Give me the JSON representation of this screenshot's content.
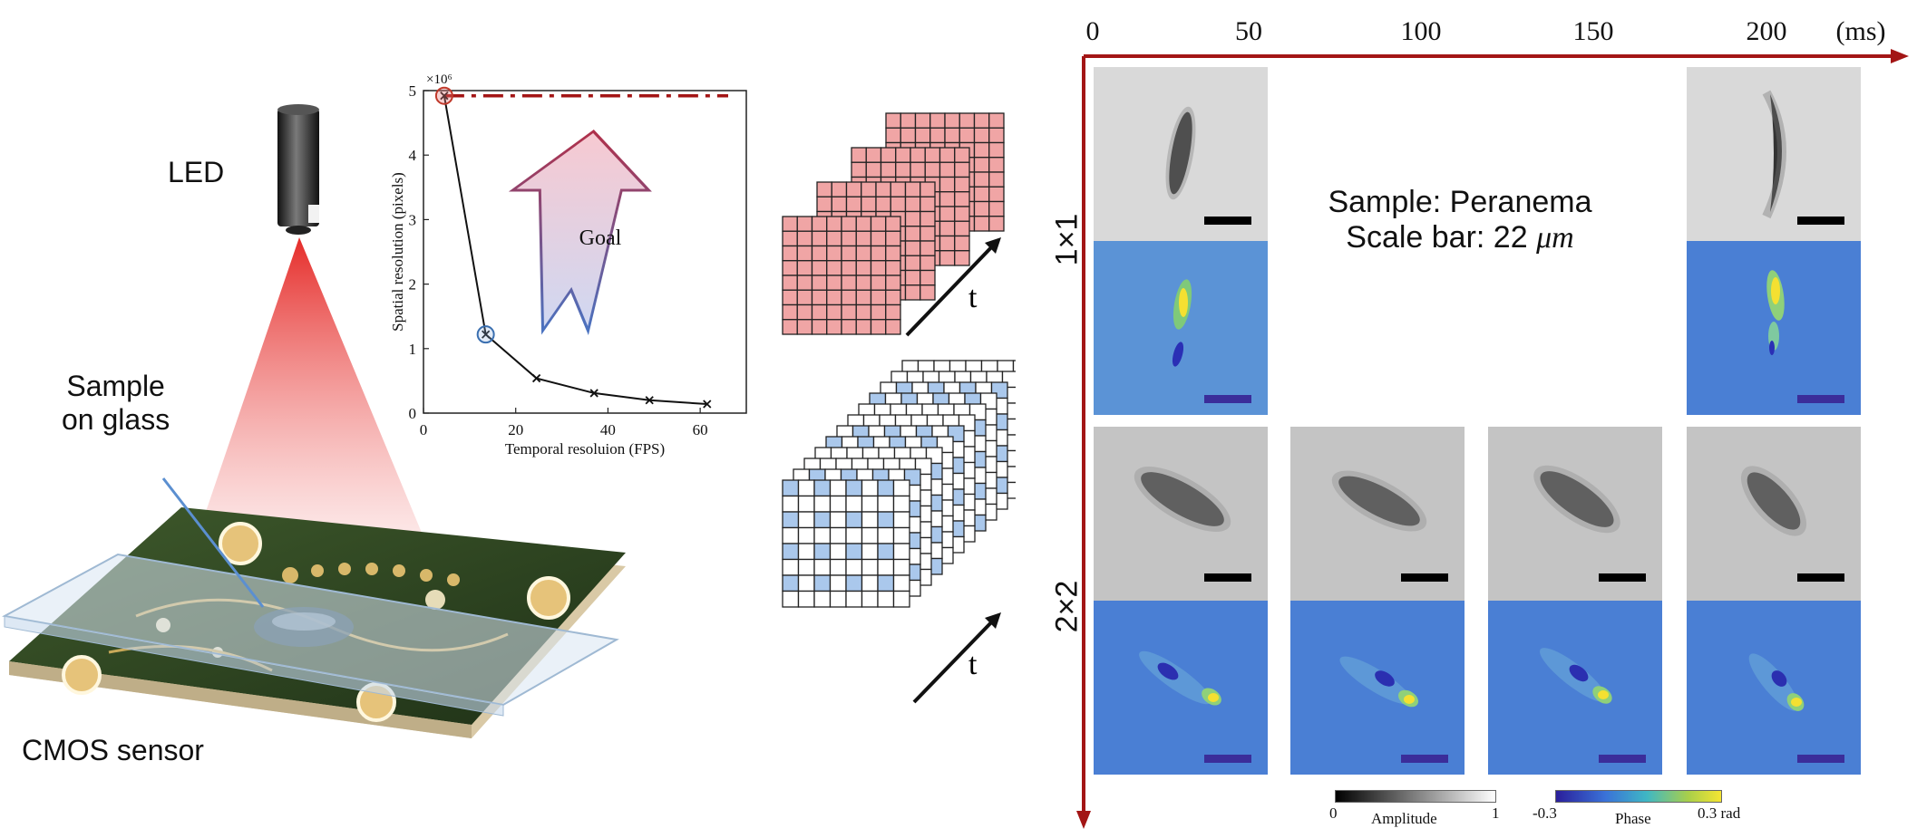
{
  "setup": {
    "led_label": "LED",
    "sample_label_line1": "Sample",
    "sample_label_line2": "on glass",
    "cmos_label": "CMOS sensor"
  },
  "tradeoff_chart": {
    "exponent_label": "×10⁶",
    "goal_label": "Goal",
    "chart_data": {
      "type": "line",
      "xlabel": "Temporal resoluion (FPS)",
      "ylabel": "Spatial resolution (pixels)",
      "xlim": [
        0,
        70
      ],
      "ylim": [
        0,
        5
      ],
      "x_ticks": [
        "0",
        "20",
        "40",
        "60"
      ],
      "y_ticks": [
        "0",
        "1",
        "2",
        "3",
        "4",
        "5"
      ],
      "series": [
        {
          "x": [
            4.5,
            13.5,
            24.5,
            37,
            49,
            61.5
          ],
          "y": [
            4.92,
            1.22,
            0.54,
            0.31,
            0.2,
            0.14
          ]
        }
      ],
      "reference_line_y": 4.92,
      "highlighted_points": [
        {
          "x": 4.5,
          "y": 4.92,
          "color": "#c0392b"
        },
        {
          "x": 13.5,
          "y": 1.22,
          "color": "#3a6fb0"
        }
      ]
    }
  },
  "stack_time_label": "t",
  "timeline": {
    "ticks": [
      "0",
      "50",
      "100",
      "150",
      "200"
    ],
    "unit": "(ms)"
  },
  "rows": [
    {
      "label": "1×1"
    },
    {
      "label": "2×2"
    }
  ],
  "sample_info": {
    "line1": "Sample: Peranema",
    "line2_prefix": "Scale bar: 22 ",
    "line2_unit": "μm"
  },
  "colorbars": {
    "amplitude": {
      "min": "0",
      "max": "1",
      "label": "Amplitude"
    },
    "phase": {
      "min": "-0.3",
      "max": "0.3 rad",
      "label": "Phase"
    }
  },
  "colors": {
    "accent_red": "#a31515",
    "grid_red_fill": "#f0a5a5",
    "grid_blue_fill": "#aac8ec",
    "phase_background": "#4a7fd4",
    "phase_background_1x1_left": "#5b93d6",
    "scale_bar_phase": "#3b2d9a"
  }
}
